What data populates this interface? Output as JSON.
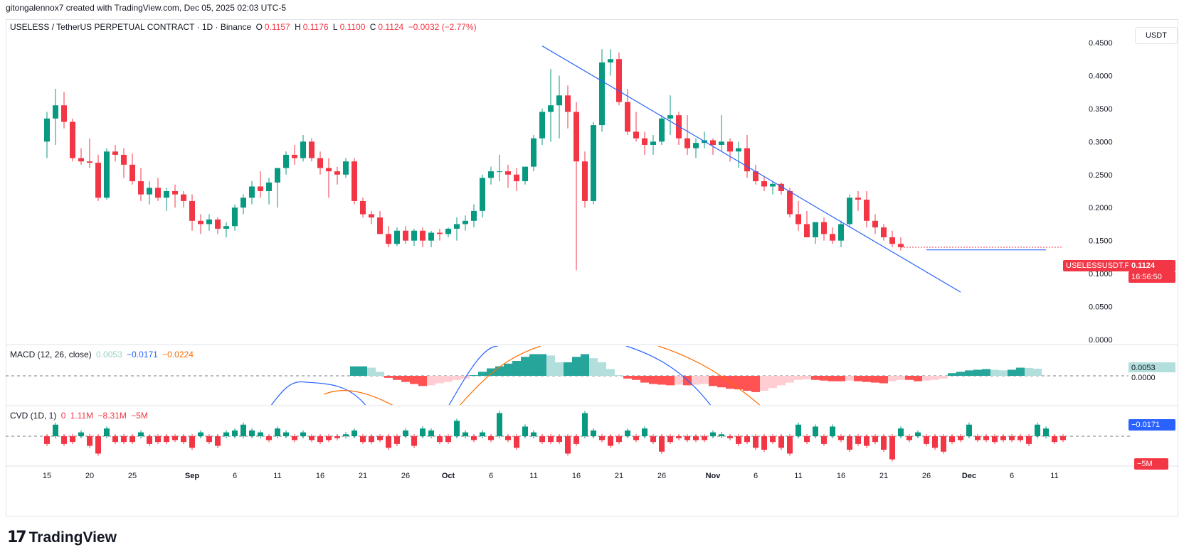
{
  "header": {
    "credit": "gitongalennox7 created with TradingView.com, Dec 05, 2025 02:03 UTC-5"
  },
  "legend": {
    "symbol": "USELESS / TetherUS PERPETUAL CONTRACT · 1D · Binance",
    "open_label": "O",
    "open": "0.1157",
    "high_label": "H",
    "high": "0.1176",
    "low_label": "L",
    "low": "0.1100",
    "close_label": "C",
    "close": "0.1124",
    "change": "−0.0032 (−2.77%)"
  },
  "macd_legend": {
    "label": "MACD (12, 26, close)",
    "hist": "0.0053",
    "macd": "−0.0171",
    "signal": "−0.0224"
  },
  "cvd_legend": {
    "label": "CVD (1D, 1)",
    "v1": "0",
    "v2": "1.11M",
    "v3": "−8.31M",
    "v4": "−5M"
  },
  "unit_button": "USDT",
  "price_tag": {
    "symbol": "USELESSUSDT.P",
    "price": "0.1124",
    "countdown": "16:56:50"
  },
  "macd_tags": {
    "hist": "0.0053",
    "zero": "0.0000",
    "macd": "−0.0171"
  },
  "cvd_tag": "−5M",
  "footer": {
    "brand": "TradingView",
    "icon": "tradingview-logo-icon"
  },
  "colors": {
    "up": "#089981",
    "down": "#f23645",
    "trendline": "#2962ff",
    "hist_up_strong": "#26a69a",
    "hist_up_weak": "#b2dfdb",
    "hist_down_strong": "#ff5252",
    "hist_down_weak": "#ffcdd2",
    "macd_line": "#2962ff",
    "signal_line": "#ff6d00"
  },
  "chart_data": [
    {
      "type": "candlestick",
      "ylim": [
        0,
        0.45
      ],
      "y_ticks": [
        "0.4500",
        "0.4000",
        "0.3500",
        "0.3000",
        "0.2500",
        "0.2000",
        "0.1500",
        "0.1000",
        "0.0500",
        "0.0000"
      ],
      "x_ticks": [
        {
          "day": 0,
          "label": "15"
        },
        {
          "day": 5,
          "label": "20"
        },
        {
          "day": 10,
          "label": "25"
        },
        {
          "day": 17,
          "label": "Sep"
        },
        {
          "day": 22,
          "label": "6"
        },
        {
          "day": 27,
          "label": "11"
        },
        {
          "day": 32,
          "label": "16"
        },
        {
          "day": 37,
          "label": "21"
        },
        {
          "day": 42,
          "label": "26"
        },
        {
          "day": 47,
          "label": "Oct"
        },
        {
          "day": 52,
          "label": "6"
        },
        {
          "day": 57,
          "label": "11"
        },
        {
          "day": 62,
          "label": "16"
        },
        {
          "day": 67,
          "label": "21"
        },
        {
          "day": 72,
          "label": "26"
        },
        {
          "day": 78,
          "label": "Nov"
        },
        {
          "day": 83,
          "label": "6"
        },
        {
          "day": 88,
          "label": "11"
        },
        {
          "day": 93,
          "label": "16"
        },
        {
          "day": 98,
          "label": "21"
        },
        {
          "day": 103,
          "label": "26"
        },
        {
          "day": 108,
          "label": "Dec"
        },
        {
          "day": 113,
          "label": "6"
        },
        {
          "day": 118,
          "label": "11"
        }
      ],
      "candles": [
        [
          0.3,
          0.345,
          0.275,
          0.335
        ],
        [
          0.335,
          0.38,
          0.295,
          0.355
        ],
        [
          0.355,
          0.375,
          0.32,
          0.33
        ],
        [
          0.33,
          0.335,
          0.27,
          0.275
        ],
        [
          0.275,
          0.29,
          0.265,
          0.27
        ],
        [
          0.27,
          0.305,
          0.26,
          0.268
        ],
        [
          0.268,
          0.28,
          0.21,
          0.215
        ],
        [
          0.215,
          0.29,
          0.212,
          0.285
        ],
        [
          0.285,
          0.295,
          0.27,
          0.28
        ],
        [
          0.28,
          0.29,
          0.245,
          0.265
        ],
        [
          0.265,
          0.282,
          0.235,
          0.24
        ],
        [
          0.24,
          0.26,
          0.21,
          0.22
        ],
        [
          0.22,
          0.24,
          0.205,
          0.23
        ],
        [
          0.23,
          0.245,
          0.21,
          0.215
        ],
        [
          0.215,
          0.23,
          0.195,
          0.225
        ],
        [
          0.225,
          0.235,
          0.2,
          0.22
        ],
        [
          0.22,
          0.225,
          0.2,
          0.21
        ],
        [
          0.21,
          0.22,
          0.165,
          0.18
        ],
        [
          0.18,
          0.19,
          0.16,
          0.175
        ],
        [
          0.175,
          0.19,
          0.165,
          0.182
        ],
        [
          0.182,
          0.185,
          0.16,
          0.168
        ],
        [
          0.168,
          0.178,
          0.155,
          0.172
        ],
        [
          0.172,
          0.205,
          0.165,
          0.2
        ],
        [
          0.2,
          0.22,
          0.19,
          0.215
        ],
        [
          0.215,
          0.24,
          0.205,
          0.232
        ],
        [
          0.232,
          0.255,
          0.215,
          0.225
        ],
        [
          0.225,
          0.245,
          0.205,
          0.238
        ],
        [
          0.238,
          0.26,
          0.2,
          0.26
        ],
        [
          0.26,
          0.285,
          0.25,
          0.28
        ],
        [
          0.28,
          0.295,
          0.265,
          0.275
        ],
        [
          0.275,
          0.31,
          0.27,
          0.3
        ],
        [
          0.3,
          0.305,
          0.27,
          0.275
        ],
        [
          0.275,
          0.285,
          0.25,
          0.26
        ],
        [
          0.26,
          0.275,
          0.215,
          0.255
        ],
        [
          0.255,
          0.262,
          0.235,
          0.25
        ],
        [
          0.25,
          0.275,
          0.245,
          0.27
        ],
        [
          0.27,
          0.275,
          0.205,
          0.21
        ],
        [
          0.21,
          0.215,
          0.185,
          0.19
        ],
        [
          0.19,
          0.195,
          0.175,
          0.185
        ],
        [
          0.185,
          0.195,
          0.16,
          0.16
        ],
        [
          0.16,
          0.172,
          0.14,
          0.145
        ],
        [
          0.145,
          0.17,
          0.142,
          0.165
        ],
        [
          0.165,
          0.172,
          0.145,
          0.15
        ],
        [
          0.15,
          0.168,
          0.142,
          0.165
        ],
        [
          0.165,
          0.17,
          0.14,
          0.15
        ],
        [
          0.15,
          0.165,
          0.14,
          0.162
        ],
        [
          0.162,
          0.168,
          0.15,
          0.16
        ],
        [
          0.16,
          0.17,
          0.155,
          0.168
        ],
        [
          0.168,
          0.185,
          0.15,
          0.175
        ],
        [
          0.175,
          0.188,
          0.165,
          0.18
        ],
        [
          0.18,
          0.205,
          0.17,
          0.195
        ],
        [
          0.195,
          0.25,
          0.185,
          0.245
        ],
        [
          0.245,
          0.262,
          0.235,
          0.255
        ],
        [
          0.255,
          0.28,
          0.24,
          0.255
        ],
        [
          0.255,
          0.265,
          0.23,
          0.25
        ],
        [
          0.25,
          0.26,
          0.225,
          0.24
        ],
        [
          0.24,
          0.262,
          0.235,
          0.262
        ],
        [
          0.262,
          0.31,
          0.255,
          0.305
        ],
        [
          0.305,
          0.35,
          0.295,
          0.345
        ],
        [
          0.345,
          0.41,
          0.3,
          0.355
        ],
        [
          0.355,
          0.4,
          0.305,
          0.37
        ],
        [
          0.37,
          0.385,
          0.32,
          0.345
        ],
        [
          0.345,
          0.36,
          0.105,
          0.27
        ],
        [
          0.27,
          0.285,
          0.2,
          0.21
        ],
        [
          0.21,
          0.33,
          0.205,
          0.325
        ],
        [
          0.325,
          0.44,
          0.315,
          0.42
        ],
        [
          0.42,
          0.44,
          0.4,
          0.425
        ],
        [
          0.425,
          0.435,
          0.355,
          0.36
        ],
        [
          0.36,
          0.38,
          0.31,
          0.315
        ],
        [
          0.315,
          0.345,
          0.3,
          0.305
        ],
        [
          0.305,
          0.315,
          0.28,
          0.295
        ],
        [
          0.295,
          0.31,
          0.28,
          0.3
        ],
        [
          0.3,
          0.34,
          0.295,
          0.335
        ],
        [
          0.335,
          0.37,
          0.31,
          0.34
        ],
        [
          0.34,
          0.345,
          0.295,
          0.305
        ],
        [
          0.305,
          0.34,
          0.28,
          0.29
        ],
        [
          0.29,
          0.305,
          0.275,
          0.298
        ],
        [
          0.298,
          0.315,
          0.29,
          0.302
        ],
        [
          0.302,
          0.305,
          0.28,
          0.295
        ],
        [
          0.295,
          0.34,
          0.285,
          0.3
        ],
        [
          0.3,
          0.305,
          0.27,
          0.285
        ],
        [
          0.285,
          0.3,
          0.26,
          0.29
        ],
        [
          0.29,
          0.31,
          0.245,
          0.255
        ],
        [
          0.255,
          0.265,
          0.235,
          0.24
        ],
        [
          0.24,
          0.248,
          0.225,
          0.232
        ],
        [
          0.232,
          0.24,
          0.22,
          0.236
        ],
        [
          0.236,
          0.238,
          0.22,
          0.225
        ],
        [
          0.225,
          0.23,
          0.185,
          0.19
        ],
        [
          0.19,
          0.21,
          0.165,
          0.175
        ],
        [
          0.175,
          0.195,
          0.155,
          0.155
        ],
        [
          0.155,
          0.175,
          0.145,
          0.178
        ],
        [
          0.178,
          0.185,
          0.15,
          0.16
        ],
        [
          0.16,
          0.17,
          0.145,
          0.15
        ],
        [
          0.15,
          0.18,
          0.14,
          0.175
        ],
        [
          0.175,
          0.22,
          0.17,
          0.215
        ],
        [
          0.215,
          0.225,
          0.195,
          0.212
        ],
        [
          0.212,
          0.225,
          0.17,
          0.18
        ],
        [
          0.18,
          0.19,
          0.16,
          0.17
        ],
        [
          0.17,
          0.175,
          0.15,
          0.155
        ],
        [
          0.155,
          0.165,
          0.14,
          0.145
        ],
        [
          0.145,
          0.155,
          0.135,
          0.14
        ]
      ],
      "trendlines": [
        {
          "from": [
            58,
            0.445
          ],
          "to": [
            107,
            0.072
          ]
        },
        {
          "from": [
            103,
            0.136
          ],
          "to": [
            117,
            0.136
          ]
        }
      ]
    },
    {
      "type": "bar",
      "name": "MACD histogram",
      "ylim": [
        -0.022,
        0.022
      ],
      "values_start_day": 36,
      "values": [
        0.007,
        0.007,
        0.006,
        0.003,
        -0.0015,
        -0.003,
        -0.0045,
        -0.006,
        -0.0075,
        -0.007,
        -0.0055,
        -0.0045,
        -0.003,
        -0.002,
        0.0005,
        0.003,
        0.0055,
        0.007,
        0.009,
        0.011,
        0.014,
        0.016,
        0.016,
        0.015,
        0.01,
        0.01,
        0.014,
        0.016,
        0.013,
        0.01,
        0.005,
        0.0005,
        -0.002,
        -0.003,
        -0.005,
        -0.006,
        -0.0065,
        -0.007,
        -0.0065,
        -0.007,
        -0.0065,
        -0.006,
        -0.0075,
        -0.0085,
        -0.0095,
        -0.01,
        -0.011,
        -0.012,
        -0.011,
        -0.009,
        -0.007,
        -0.005,
        -0.003,
        -0.0025,
        -0.003,
        -0.0035,
        -0.004,
        -0.004,
        -0.0035,
        -0.004,
        -0.0045,
        -0.005,
        -0.0055,
        -0.004,
        -0.003,
        -0.003,
        -0.004,
        -0.0035,
        -0.003,
        -0.002,
        0.002,
        0.003,
        0.004,
        0.0045,
        0.005,
        0.0045,
        0.004,
        0.0045,
        0.006,
        0.0058,
        0.0053
      ]
    },
    {
      "type": "bar",
      "name": "CVD",
      "ylim": [
        -7,
        7
      ],
      "values": [
        -2.0,
        3.0,
        -2.0,
        -1.5,
        1.0,
        -2.5,
        -4.5,
        2.0,
        -1.5,
        -1.5,
        -1.5,
        1.0,
        -2.0,
        -1.5,
        -1.5,
        -1.0,
        -1.5,
        -3.0,
        1.0,
        -1.5,
        -2.5,
        1.0,
        1.5,
        3.0,
        1.5,
        1.0,
        -1.0,
        2.0,
        1.0,
        -1.0,
        1.0,
        -1.0,
        -1.5,
        -1.0,
        -0.5,
        0.5,
        1.5,
        -1.5,
        -1.5,
        -1.0,
        -3.0,
        -2.0,
        1.5,
        -2.5,
        2.0,
        1.5,
        -1.5,
        -1.5,
        4.0,
        1.0,
        -1.0,
        1.0,
        -1.0,
        6.0,
        -1.0,
        -3.0,
        2.5,
        1.0,
        -1.5,
        -1.5,
        -1.5,
        -4.5,
        -2.0,
        6.0,
        1.5,
        -1.0,
        -2.5,
        -1.5,
        1.5,
        -1.0,
        2.0,
        -1.5,
        -4.0,
        -1.5,
        -0.5,
        -1.0,
        -1.0,
        -1.0,
        1.0,
        0.5,
        -0.5,
        -2.0,
        -1.5,
        -3.0,
        -3.5,
        -1.5,
        -3.0,
        -4.5,
        3.0,
        -1.5,
        2.5,
        -2.0,
        2.5,
        -1.0,
        -3.5,
        -2.0,
        -2.5,
        -1.5,
        -3.5,
        -6.0,
        2.0,
        -1.0,
        1.0,
        -2.0,
        -3.0,
        -4.0,
        -1.5,
        -1.0,
        3.0,
        -1.0,
        -1.0,
        -1.5,
        -1.0,
        -1.0,
        -1.0,
        -2.0,
        3.0,
        2.0,
        -1.5,
        -1.0
      ]
    }
  ]
}
